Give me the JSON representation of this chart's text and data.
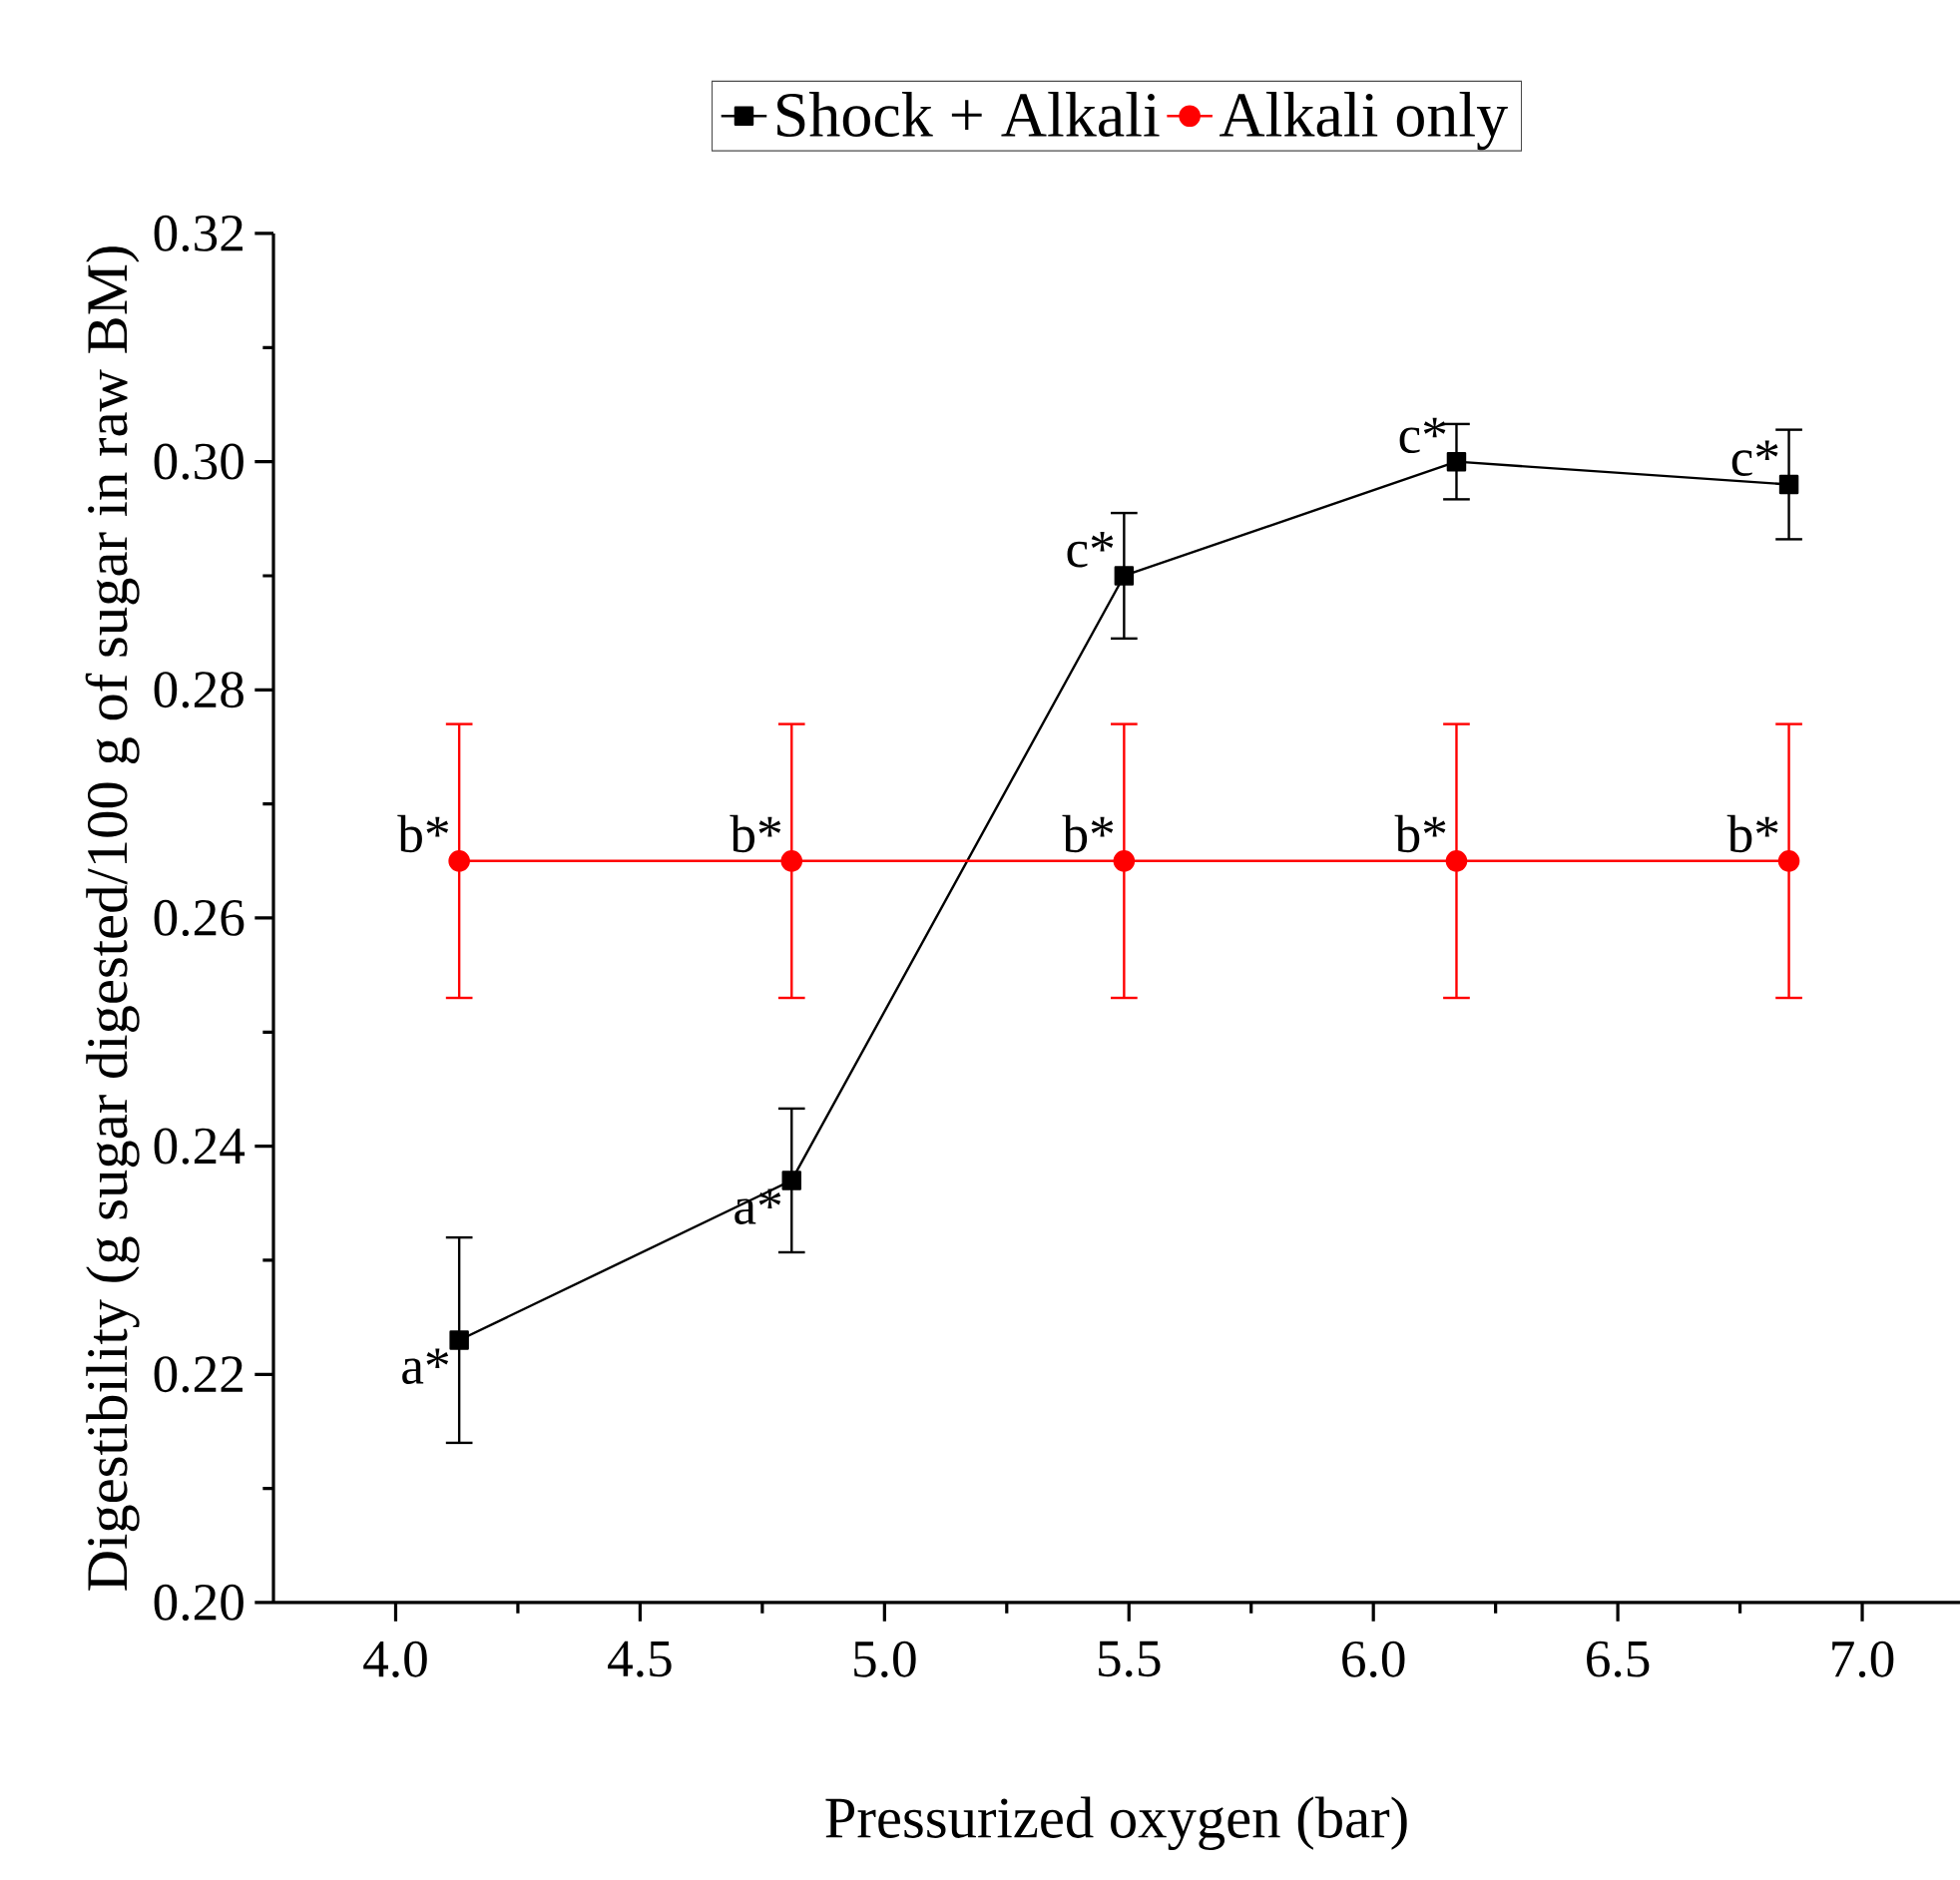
{
  "chart_data": {
    "type": "line",
    "xlabel": "Pressurized oxygen (bar)",
    "ylabel": "Digestibility (g sugar digested/100 g of  sugar in raw BM)",
    "x": [
      4.13,
      4.81,
      5.49,
      6.17,
      6.85
    ],
    "series": [
      {
        "name": "Shock + Alkali",
        "color": "#000000",
        "marker": "square",
        "values": [
          0.223,
          0.237,
          0.29,
          0.3,
          0.298
        ],
        "errors": [
          0.009,
          0.0063,
          0.0055,
          0.0033,
          0.0048
        ]
      },
      {
        "name": "Alkali only",
        "color": "#ff0000",
        "marker": "circle",
        "values": [
          0.265,
          0.265,
          0.265,
          0.265,
          0.265
        ],
        "errors": [
          0.012,
          0.012,
          0.012,
          0.012,
          0.012
        ]
      }
    ],
    "xlim": [
      3.75,
      7.2
    ],
    "ylim": [
      0.2,
      0.32
    ],
    "xticks": [
      {
        "value": 4,
        "label": "4.0"
      },
      {
        "value": 4.5,
        "label": "4.5"
      },
      {
        "value": 5,
        "label": "5.0"
      },
      {
        "value": 5.5,
        "label": "5.5"
      },
      {
        "value": 6,
        "label": "6.0"
      },
      {
        "value": 6.5,
        "label": "6.5"
      },
      {
        "value": 7,
        "label": "7.0"
      }
    ],
    "yticks": [
      {
        "value": 0.2,
        "label": "0.20"
      },
      {
        "value": 0.22,
        "label": "0.22"
      },
      {
        "value": 0.24,
        "label": "0.24"
      },
      {
        "value": 0.26,
        "label": "0.26"
      },
      {
        "value": 0.28,
        "label": "0.28"
      },
      {
        "value": 0.3,
        "label": "0.30"
      },
      {
        "value": 0.32,
        "label": "0.32"
      }
    ],
    "annotations": [
      {
        "text": "a*",
        "x": 4.13,
        "y": 0.223
      },
      {
        "text": "a*",
        "x": 4.81,
        "y": 0.237
      },
      {
        "text": "c*",
        "x": 5.49,
        "y": 0.29
      },
      {
        "text": "c*",
        "x": 6.17,
        "y": 0.3
      },
      {
        "text": "c*",
        "x": 6.85,
        "y": 0.298
      },
      {
        "text": "b*",
        "x": 4.13,
        "y": 0.265
      },
      {
        "text": "b*",
        "x": 4.81,
        "y": 0.265
      },
      {
        "text": "b*",
        "x": 5.49,
        "y": 0.265
      },
      {
        "text": "b*",
        "x": 6.17,
        "y": 0.265
      },
      {
        "text": "b*",
        "x": 6.85,
        "y": 0.265
      }
    ],
    "legend": "top",
    "grid": false,
    "line_style": "solid"
  }
}
